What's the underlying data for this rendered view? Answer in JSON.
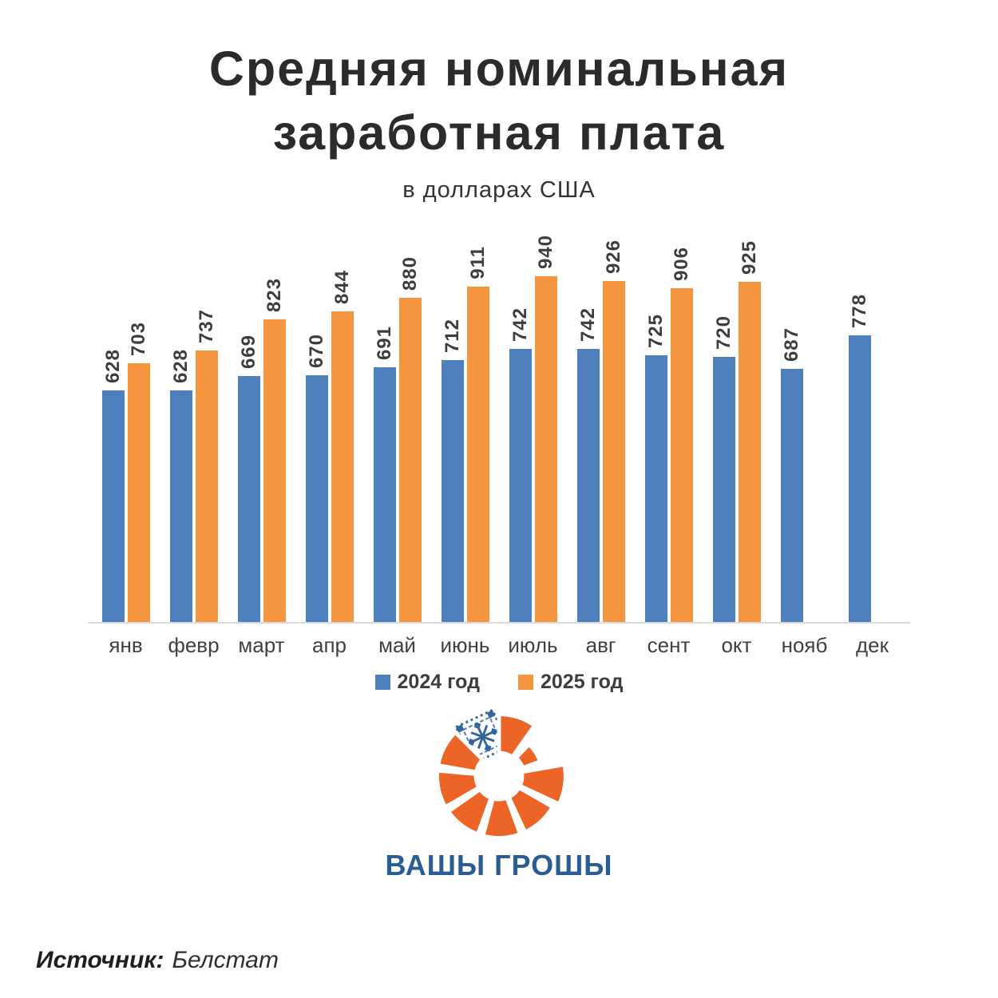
{
  "header": {
    "title_line1": "Средняя номинальная",
    "title_line2": "заработная плата",
    "subtitle": "в долларах США"
  },
  "chart_data": {
    "type": "bar",
    "title": "Средняя номинальная заработная плата",
    "subtitle": "в долларах США",
    "categories": [
      "янв",
      "февр",
      "март",
      "апр",
      "май",
      "июнь",
      "июль",
      "авг",
      "сент",
      "окт",
      "нояб",
      "дек"
    ],
    "series": [
      {
        "name": "2024 год",
        "color": "#4e80bd",
        "values": [
          628,
          628,
          669,
          670,
          691,
          712,
          742,
          742,
          725,
          720,
          687,
          778
        ]
      },
      {
        "name": "2025 год",
        "color": "#f5953f",
        "values": [
          703,
          737,
          823,
          844,
          880,
          911,
          940,
          926,
          906,
          925,
          null,
          null
        ]
      }
    ],
    "ylim": [
      0,
      1000
    ],
    "grid": false,
    "value_labels": "rotated-90-above-bars",
    "legend_position": "bottom",
    "axis_line_color": "#d9d9d9"
  },
  "logo": {
    "text": "ВАШЫ ГРОШЫ",
    "orange": "#ec6526",
    "blue": "#2a5c96",
    "pattern_blue": "#33659f"
  },
  "source": {
    "label": "Источник:",
    "value": "Белстат"
  },
  "colors": {
    "background": "#ffffff",
    "text_dark": "#3d3d3d",
    "title_text": "#2b2b2b"
  }
}
